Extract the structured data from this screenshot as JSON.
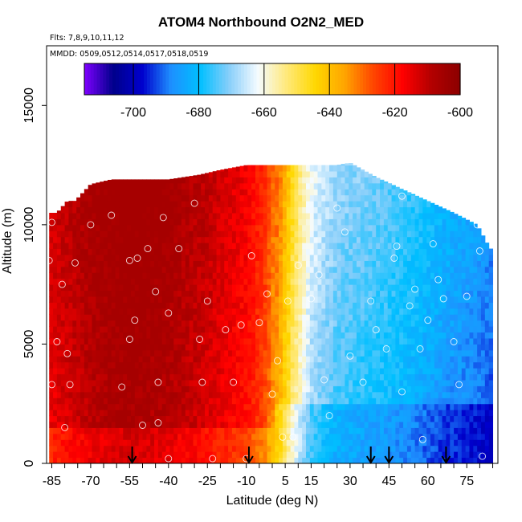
{
  "chart_data": {
    "type": "heatmap",
    "title": "ATOM4 Northbound O2N2_MED",
    "subtitle_flights": "Flts: 7,8,9,10,11,12",
    "subtitle_dates": "MMDD: 0509,0512,0514,0517,0518,0519",
    "xlabel": "Latitude (deg N)",
    "ylabel": "Altitude (m)",
    "xlim": [
      -87,
      87
    ],
    "ylim": [
      0,
      17500
    ],
    "x_ticks": [
      -85,
      -70,
      -55,
      -40,
      -25,
      -10,
      5,
      15,
      30,
      45,
      60,
      75
    ],
    "x_minor_step": 5,
    "y_ticks": [
      0,
      5000,
      10000,
      15000
    ],
    "colorbar": {
      "range": [
        -715,
        -600
      ],
      "ticks": [
        -700,
        -680,
        -660,
        -640,
        -620,
        -600
      ],
      "colors": [
        "#7f00ff",
        "#00008b",
        "#0000cd",
        "#1e90ff",
        "#00bfff",
        "#87cefa",
        "#f5fbff",
        "#ffe97a",
        "#ffd700",
        "#ffa500",
        "#ff4500",
        "#ff0000",
        "#b30000",
        "#8b0000"
      ]
    },
    "value_range": [
      -700,
      -606
    ],
    "field_profile": {
      "lat": [
        -85,
        -70,
        -55,
        -40,
        -25,
        -10,
        -3,
        3,
        8,
        15,
        25,
        40,
        55,
        65,
        80,
        85
      ],
      "value": [
        -616,
        -610,
        -607,
        -609,
        -614,
        -620,
        -627,
        -640,
        -655,
        -670,
        -677,
        -680,
        -684,
        -688,
        -692,
        -695
      ]
    },
    "field_top": {
      "lat": [
        -86,
        -83,
        -79,
        -76,
        -70,
        -62,
        -50,
        -40,
        -28,
        -20,
        -10,
        0,
        10,
        20,
        25,
        30,
        40,
        50,
        60,
        70,
        79,
        84
      ],
      "alt": [
        10500,
        10500,
        11000,
        11000,
        11700,
        11900,
        11900,
        11900,
        12100,
        12300,
        12500,
        12500,
        12500,
        12500,
        12500,
        12600,
        12000,
        11500,
        11000,
        10500,
        10000,
        9000
      ]
    },
    "arrows_lat": [
      -54,
      -9,
      38,
      45,
      67
    ],
    "samples": [
      [
        -86,
        8500
      ],
      [
        -85,
        10100
      ],
      [
        -85,
        3300
      ],
      [
        -83,
        5100
      ],
      [
        -81,
        7500
      ],
      [
        -80,
        1500
      ],
      [
        -79,
        4600
      ],
      [
        -78,
        3300
      ],
      [
        -76,
        8400
      ],
      [
        -70,
        10000
      ],
      [
        -62,
        10400
      ],
      [
        -58,
        3200
      ],
      [
        -55,
        8500
      ],
      [
        -55,
        5200
      ],
      [
        -53,
        6000
      ],
      [
        -52,
        8600
      ],
      [
        -50,
        1600
      ],
      [
        -48,
        9000
      ],
      [
        -45,
        7200
      ],
      [
        -44,
        3400
      ],
      [
        -44,
        1700
      ],
      [
        -42,
        10300
      ],
      [
        -40,
        6300
      ],
      [
        -40,
        200
      ],
      [
        -36,
        9000
      ],
      [
        -30,
        10900
      ],
      [
        -28,
        5200
      ],
      [
        -27,
        3400
      ],
      [
        -25,
        6800
      ],
      [
        -23,
        200
      ],
      [
        -18,
        5600
      ],
      [
        -15,
        3400
      ],
      [
        -12,
        5800
      ],
      [
        -10,
        200
      ],
      [
        -8,
        8700
      ],
      [
        -5,
        5900
      ],
      [
        -2,
        7100
      ],
      [
        0,
        2900
      ],
      [
        2,
        4300
      ],
      [
        4,
        1100
      ],
      [
        6,
        6800
      ],
      [
        8,
        1100
      ],
      [
        10,
        8300
      ],
      [
        15,
        6900
      ],
      [
        18,
        7900
      ],
      [
        20,
        3500
      ],
      [
        22,
        2000
      ],
      [
        25,
        10700
      ],
      [
        28,
        9700
      ],
      [
        30,
        4500
      ],
      [
        35,
        3400
      ],
      [
        38,
        6800
      ],
      [
        40,
        5600
      ],
      [
        44,
        4800
      ],
      [
        47,
        8600
      ],
      [
        48,
        9100
      ],
      [
        50,
        11200
      ],
      [
        50,
        3000
      ],
      [
        53,
        6600
      ],
      [
        55,
        7300
      ],
      [
        57,
        4800
      ],
      [
        58,
        1000
      ],
      [
        60,
        6000
      ],
      [
        62,
        9200
      ],
      [
        64,
        7700
      ],
      [
        66,
        6900
      ],
      [
        70,
        5100
      ],
      [
        72,
        3300
      ],
      [
        75,
        7000
      ],
      [
        79,
        10000
      ],
      [
        80,
        8900
      ],
      [
        81,
        300
      ]
    ]
  }
}
